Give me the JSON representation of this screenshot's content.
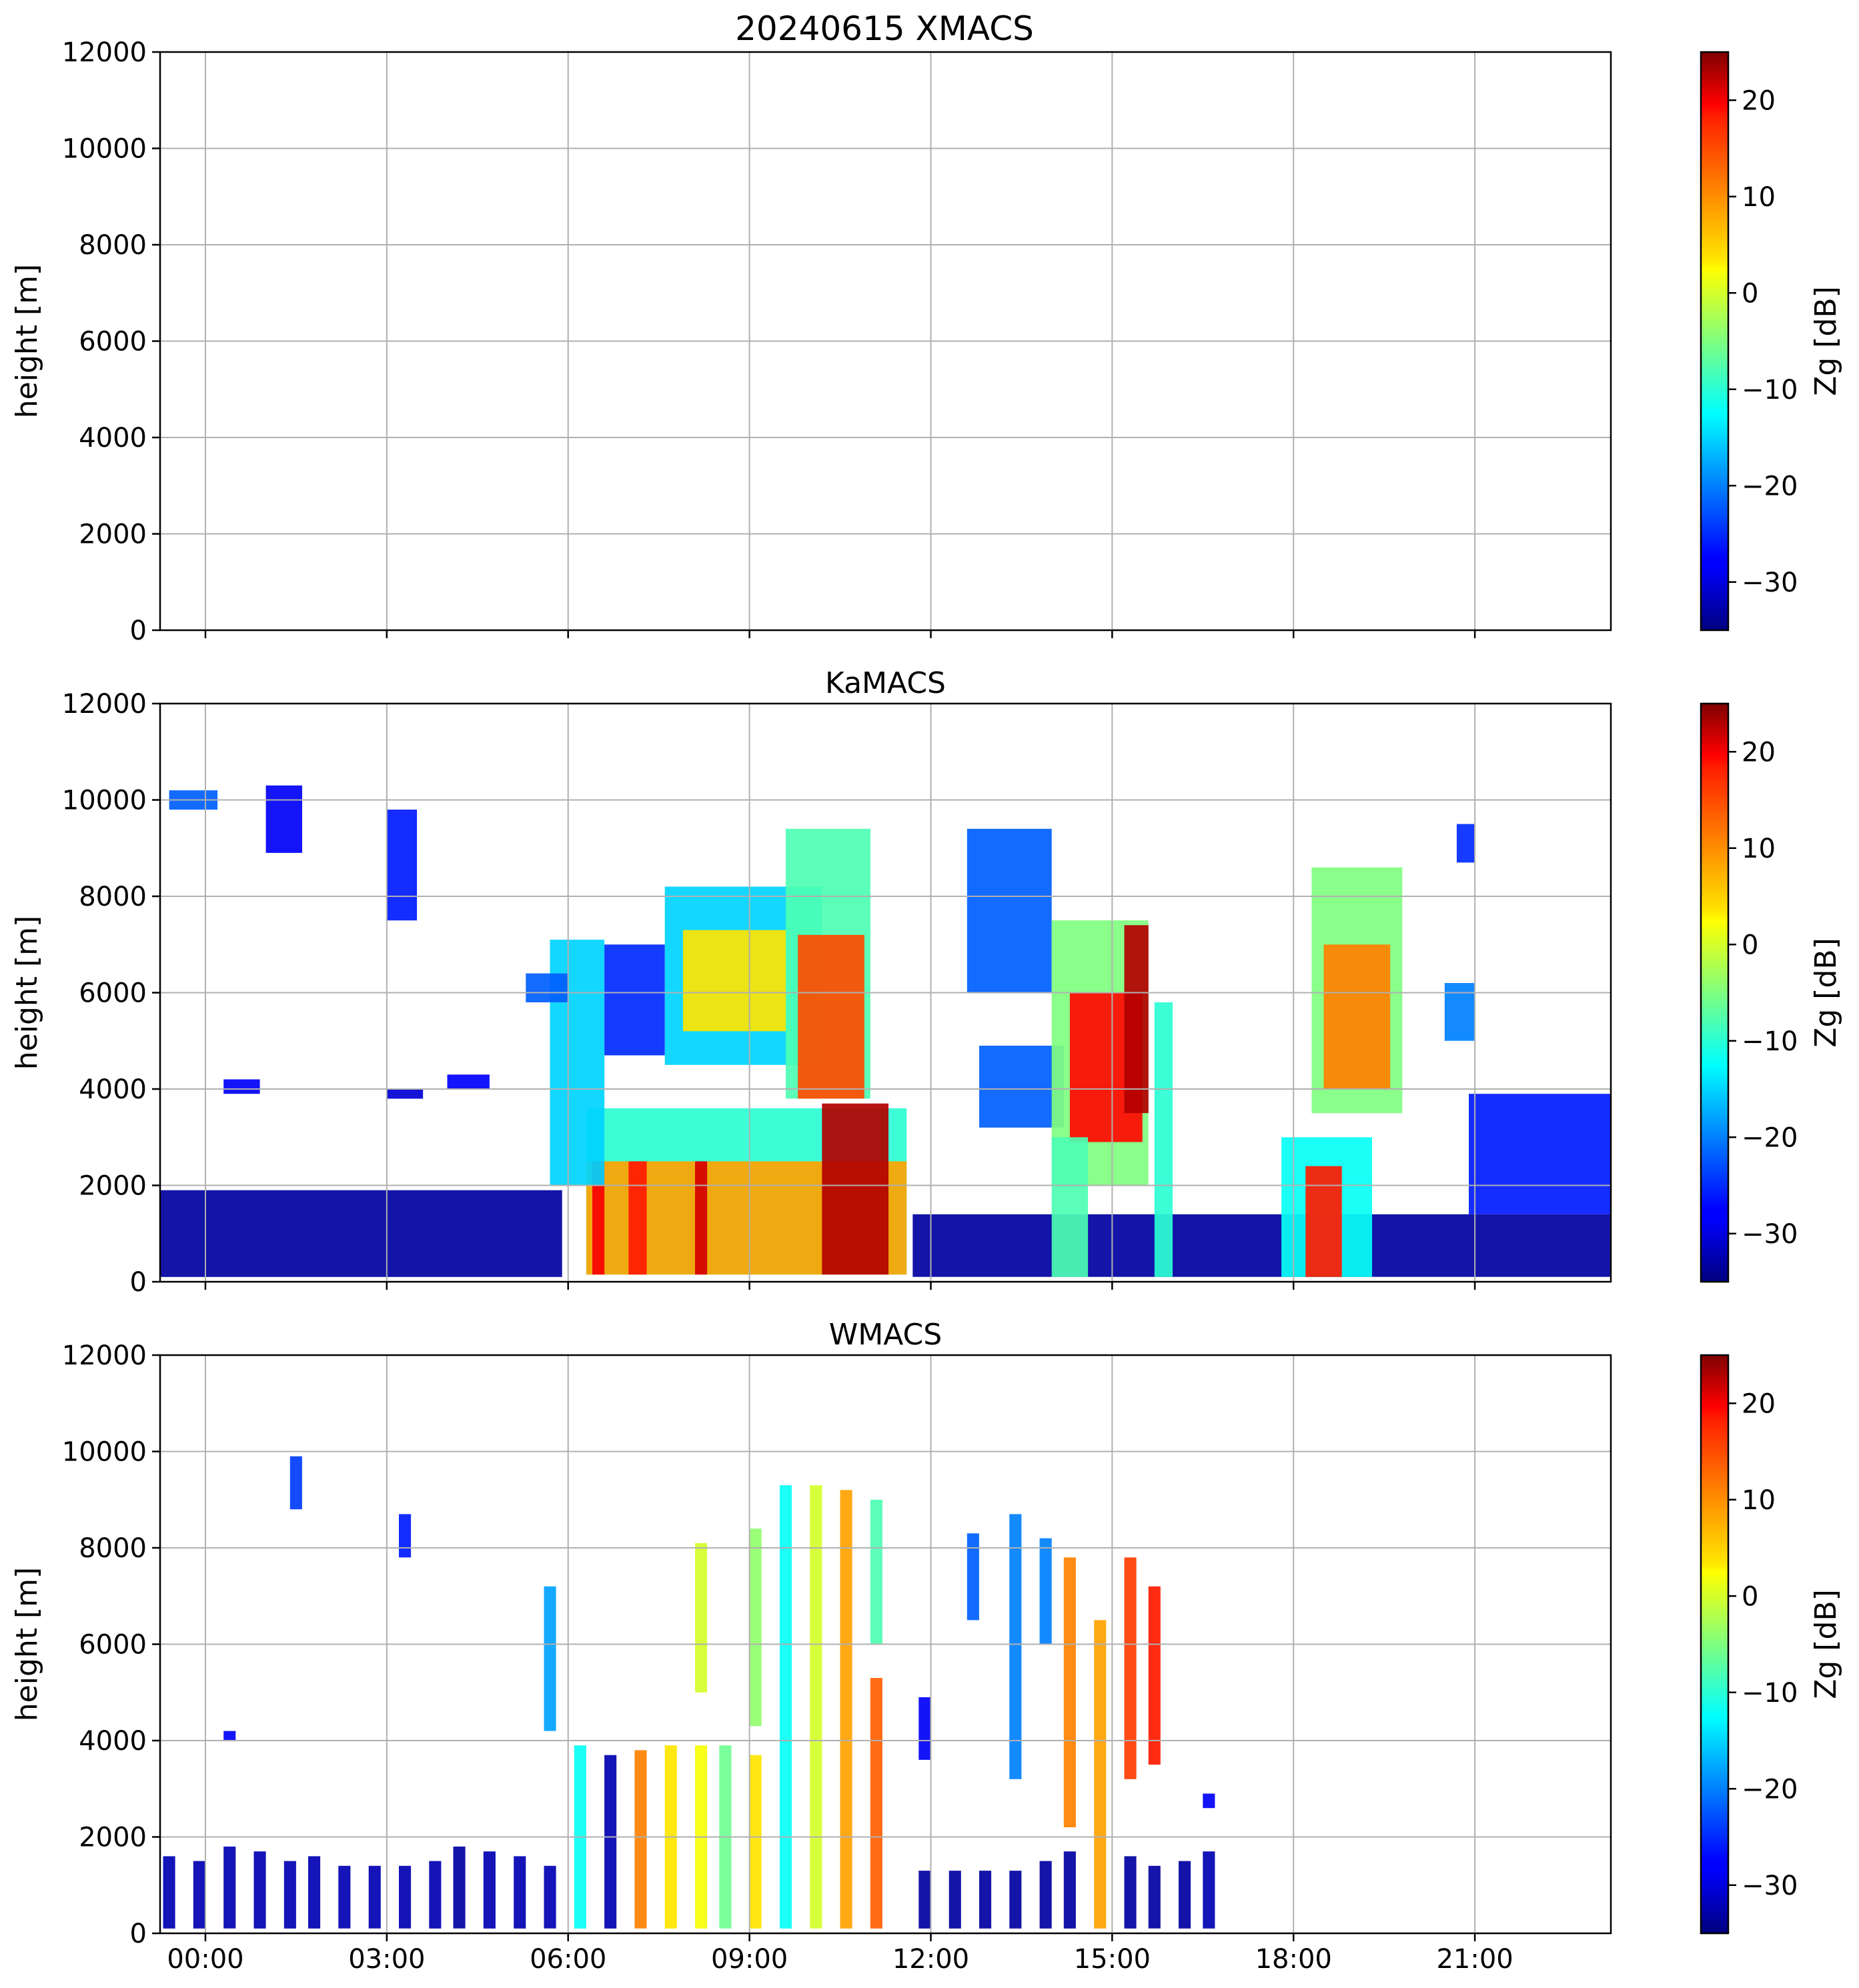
{
  "figure": {
    "suptitle": "20240615 XMACS"
  },
  "chart_data": [
    {
      "type": "heatmap",
      "title": "20240615 XMACS",
      "ylabel": "height [m]",
      "xlabel": "",
      "yticks": [
        0,
        2000,
        4000,
        6000,
        8000,
        10000,
        12000
      ],
      "ylim": [
        0,
        12000
      ],
      "xticks": [
        "00:00",
        "03:00",
        "06:00",
        "09:00",
        "12:00",
        "15:00",
        "18:00",
        "21:00"
      ],
      "x_tick_hours": [
        0,
        3,
        6,
        9,
        12,
        15,
        18,
        21
      ],
      "xlim_hours": [
        -0.75,
        23.25
      ],
      "show_xticklabels": false,
      "grid": true,
      "colorbar": {
        "label": "Zg [dB]",
        "ticks": [
          20,
          10,
          0,
          -10,
          -20,
          -30
        ],
        "range": [
          -35,
          25
        ],
        "colormap": "jet"
      },
      "echoes": []
    },
    {
      "type": "heatmap",
      "title": "KaMACS",
      "ylabel": "height [m]",
      "xlabel": "",
      "yticks": [
        0,
        2000,
        4000,
        6000,
        8000,
        10000,
        12000
      ],
      "ylim": [
        0,
        12000
      ],
      "xticks": [
        "00:00",
        "03:00",
        "06:00",
        "09:00",
        "12:00",
        "15:00",
        "18:00",
        "21:00"
      ],
      "x_tick_hours": [
        0,
        3,
        6,
        9,
        12,
        15,
        18,
        21
      ],
      "xlim_hours": [
        -0.75,
        23.25
      ],
      "show_xticklabels": false,
      "grid": true,
      "colorbar": {
        "label": "Zg [dB]",
        "ticks": [
          20,
          10,
          0,
          -10,
          -20,
          -30
        ],
        "range": [
          -35,
          25
        ],
        "colormap": "jet"
      },
      "echoes": [
        {
          "t0": -0.75,
          "t1": 5.9,
          "h0": 100,
          "h1": 1900,
          "zg": -33
        },
        {
          "t0": 11.7,
          "t1": 23.25,
          "h0": 100,
          "h1": 1400,
          "zg": -33
        },
        {
          "t0": 6.3,
          "t1": 11.6,
          "h0": 150,
          "h1": 3600,
          "zg": -10
        },
        {
          "t0": 6.3,
          "t1": 11.6,
          "h0": 150,
          "h1": 2500,
          "zg": 8
        },
        {
          "t0": 6.4,
          "t1": 6.6,
          "h0": 150,
          "h1": 2500,
          "zg": 18
        },
        {
          "t0": 7.0,
          "t1": 7.3,
          "h0": 150,
          "h1": 2500,
          "zg": 16
        },
        {
          "t0": 8.1,
          "t1": 8.3,
          "h0": 150,
          "h1": 2500,
          "zg": 20
        },
        {
          "t0": 10.2,
          "t1": 11.3,
          "h0": 150,
          "h1": 3700,
          "zg": 22
        },
        {
          "t0": 5.7,
          "t1": 6.6,
          "h0": 2000,
          "h1": 7100,
          "zg": -15
        },
        {
          "t0": 6.6,
          "t1": 7.6,
          "h0": 4700,
          "h1": 7000,
          "zg": -25
        },
        {
          "t0": 7.6,
          "t1": 10.2,
          "h0": 4500,
          "h1": 8200,
          "zg": -15
        },
        {
          "t0": 7.9,
          "t1": 9.6,
          "h0": 5200,
          "h1": 7300,
          "zg": 4
        },
        {
          "t0": 9.6,
          "t1": 11.0,
          "h0": 3800,
          "h1": 9400,
          "zg": -8
        },
        {
          "t0": 9.8,
          "t1": 10.9,
          "h0": 3800,
          "h1": 7200,
          "zg": 13
        },
        {
          "t0": 12.6,
          "t1": 14.0,
          "h0": 6000,
          "h1": 9400,
          "zg": -22
        },
        {
          "t0": 12.8,
          "t1": 14.2,
          "h0": 3200,
          "h1": 4900,
          "zg": -22
        },
        {
          "t0": 14.0,
          "t1": 15.6,
          "h0": 2000,
          "h1": 7500,
          "zg": -5
        },
        {
          "t0": 14.3,
          "t1": 15.5,
          "h0": 2900,
          "h1": 6000,
          "zg": 17
        },
        {
          "t0": 14.0,
          "t1": 14.6,
          "h0": 100,
          "h1": 3000,
          "zg": -8
        },
        {
          "t0": 15.2,
          "t1": 15.6,
          "h0": 3500,
          "h1": 7400,
          "zg": 22
        },
        {
          "t0": 15.7,
          "t1": 16.0,
          "h0": 100,
          "h1": 5800,
          "zg": -10
        },
        {
          "t0": 17.8,
          "t1": 19.3,
          "h0": 100,
          "h1": 3000,
          "zg": -12
        },
        {
          "t0": 18.2,
          "t1": 18.8,
          "h0": 100,
          "h1": 2400,
          "zg": 16
        },
        {
          "t0": 18.3,
          "t1": 19.8,
          "h0": 3500,
          "h1": 8600,
          "zg": -5
        },
        {
          "t0": 18.5,
          "t1": 19.6,
          "h0": 4000,
          "h1": 7000,
          "zg": 10
        },
        {
          "t0": 20.9,
          "t1": 23.25,
          "h0": 1400,
          "h1": 3900,
          "zg": -26
        },
        {
          "t0": 20.5,
          "t1": 21.0,
          "h0": 5000,
          "h1": 6200,
          "zg": -20
        },
        {
          "t0": 20.7,
          "t1": 21.0,
          "h0": 8700,
          "h1": 9500,
          "zg": -25
        },
        {
          "t0": -0.6,
          "t1": 0.2,
          "h0": 9800,
          "h1": 10200,
          "zg": -22
        },
        {
          "t0": 1.0,
          "t1": 1.6,
          "h0": 8900,
          "h1": 10300,
          "zg": -28
        },
        {
          "t0": 3.0,
          "t1": 3.5,
          "h0": 7500,
          "h1": 9800,
          "zg": -26
        },
        {
          "t0": 0.3,
          "t1": 0.9,
          "h0": 3900,
          "h1": 4200,
          "zg": -28
        },
        {
          "t0": 3.0,
          "t1": 3.6,
          "h0": 3800,
          "h1": 4000,
          "zg": -30
        },
        {
          "t0": 4.0,
          "t1": 4.7,
          "h0": 4000,
          "h1": 4300,
          "zg": -28
        },
        {
          "t0": 5.3,
          "t1": 6.0,
          "h0": 5800,
          "h1": 6400,
          "zg": -22
        }
      ]
    },
    {
      "type": "heatmap",
      "title": "WMACS",
      "ylabel": "height [m]",
      "xlabel": "",
      "yticks": [
        0,
        2000,
        4000,
        6000,
        8000,
        10000,
        12000
      ],
      "ylim": [
        0,
        12000
      ],
      "xticks": [
        "00:00",
        "03:00",
        "06:00",
        "09:00",
        "12:00",
        "15:00",
        "18:00",
        "21:00"
      ],
      "x_tick_hours": [
        0,
        3,
        6,
        9,
        12,
        15,
        18,
        21
      ],
      "xlim_hours": [
        -0.75,
        23.25
      ],
      "show_xticklabels": true,
      "grid": true,
      "colorbar": {
        "label": "Zg [dB]",
        "ticks": [
          20,
          10,
          0,
          -10,
          -20,
          -30
        ],
        "range": [
          -35,
          25
        ],
        "colormap": "jet"
      },
      "echoes": [
        {
          "t0": -0.7,
          "t1": -0.5,
          "h0": 100,
          "h1": 1600,
          "zg": -32
        },
        {
          "t0": -0.2,
          "t1": 0.0,
          "h0": 100,
          "h1": 1500,
          "zg": -32
        },
        {
          "t0": 0.3,
          "t1": 0.5,
          "h0": 100,
          "h1": 1800,
          "zg": -32
        },
        {
          "t0": 0.8,
          "t1": 1.0,
          "h0": 100,
          "h1": 1700,
          "zg": -32
        },
        {
          "t0": 1.3,
          "t1": 1.5,
          "h0": 100,
          "h1": 1500,
          "zg": -32
        },
        {
          "t0": 1.7,
          "t1": 1.9,
          "h0": 100,
          "h1": 1600,
          "zg": -32
        },
        {
          "t0": 2.2,
          "t1": 2.4,
          "h0": 100,
          "h1": 1400,
          "zg": -32
        },
        {
          "t0": 2.7,
          "t1": 2.9,
          "h0": 100,
          "h1": 1400,
          "zg": -32
        },
        {
          "t0": 3.2,
          "t1": 3.4,
          "h0": 100,
          "h1": 1400,
          "zg": -32
        },
        {
          "t0": 3.7,
          "t1": 3.9,
          "h0": 100,
          "h1": 1500,
          "zg": -32
        },
        {
          "t0": 4.1,
          "t1": 4.3,
          "h0": 100,
          "h1": 1800,
          "zg": -33
        },
        {
          "t0": 4.6,
          "t1": 4.8,
          "h0": 100,
          "h1": 1700,
          "zg": -32
        },
        {
          "t0": 5.1,
          "t1": 5.3,
          "h0": 100,
          "h1": 1600,
          "zg": -32
        },
        {
          "t0": 5.6,
          "t1": 5.8,
          "h0": 100,
          "h1": 1400,
          "zg": -32
        },
        {
          "t0": 5.6,
          "t1": 5.8,
          "h0": 4200,
          "h1": 7200,
          "zg": -18
        },
        {
          "t0": 6.1,
          "t1": 6.3,
          "h0": 100,
          "h1": 3900,
          "zg": -12
        },
        {
          "t0": 6.6,
          "t1": 6.8,
          "h0": 100,
          "h1": 3700,
          "zg": -32
        },
        {
          "t0": 7.1,
          "t1": 7.3,
          "h0": 100,
          "h1": 3800,
          "zg": 10
        },
        {
          "t0": 7.6,
          "t1": 7.8,
          "h0": 100,
          "h1": 3900,
          "zg": 4
        },
        {
          "t0": 8.1,
          "t1": 8.3,
          "h0": 100,
          "h1": 3900,
          "zg": 2
        },
        {
          "t0": 8.1,
          "t1": 8.3,
          "h0": 5000,
          "h1": 8100,
          "zg": 0
        },
        {
          "t0": 8.5,
          "t1": 8.7,
          "h0": 100,
          "h1": 3900,
          "zg": -6
        },
        {
          "t0": 9.0,
          "t1": 9.2,
          "h0": 100,
          "h1": 3700,
          "zg": 4
        },
        {
          "t0": 9.0,
          "t1": 9.2,
          "h0": 4300,
          "h1": 8400,
          "zg": -4
        },
        {
          "t0": 9.5,
          "t1": 9.7,
          "h0": 100,
          "h1": 9300,
          "zg": -12
        },
        {
          "t0": 10.0,
          "t1": 10.2,
          "h0": 100,
          "h1": 9300,
          "zg": 0
        },
        {
          "t0": 10.5,
          "t1": 10.7,
          "h0": 100,
          "h1": 9200,
          "zg": 8
        },
        {
          "t0": 11.0,
          "t1": 11.2,
          "h0": 100,
          "h1": 5300,
          "zg": 12
        },
        {
          "t0": 11.0,
          "t1": 11.2,
          "h0": 6000,
          "h1": 9000,
          "zg": -8
        },
        {
          "t0": 11.8,
          "t1": 12.0,
          "h0": 3600,
          "h1": 4900,
          "zg": -28
        },
        {
          "t0": 11.8,
          "t1": 12.0,
          "h0": 100,
          "h1": 1300,
          "zg": -33
        },
        {
          "t0": 12.3,
          "t1": 12.5,
          "h0": 100,
          "h1": 1300,
          "zg": -33
        },
        {
          "t0": 12.8,
          "t1": 13.0,
          "h0": 100,
          "h1": 1300,
          "zg": -33
        },
        {
          "t0": 12.6,
          "t1": 12.8,
          "h0": 6500,
          "h1": 8300,
          "zg": -22
        },
        {
          "t0": 13.3,
          "t1": 13.5,
          "h0": 100,
          "h1": 1300,
          "zg": -33
        },
        {
          "t0": 13.3,
          "t1": 13.5,
          "h0": 3200,
          "h1": 8700,
          "zg": -20
        },
        {
          "t0": 13.8,
          "t1": 14.0,
          "h0": 100,
          "h1": 1500,
          "zg": -33
        },
        {
          "t0": 13.8,
          "t1": 14.0,
          "h0": 6000,
          "h1": 8200,
          "zg": -20
        },
        {
          "t0": 14.2,
          "t1": 14.4,
          "h0": 100,
          "h1": 1700,
          "zg": -33
        },
        {
          "t0": 14.2,
          "t1": 14.4,
          "h0": 2200,
          "h1": 7800,
          "zg": 10
        },
        {
          "t0": 14.7,
          "t1": 14.9,
          "h0": 100,
          "h1": 6500,
          "zg": 8
        },
        {
          "t0": 15.2,
          "t1": 15.4,
          "h0": 100,
          "h1": 1600,
          "zg": -33
        },
        {
          "t0": 15.2,
          "t1": 15.4,
          "h0": 3200,
          "h1": 7800,
          "zg": 14
        },
        {
          "t0": 15.6,
          "t1": 15.8,
          "h0": 100,
          "h1": 1400,
          "zg": -33
        },
        {
          "t0": 15.6,
          "t1": 15.8,
          "h0": 3500,
          "h1": 7200,
          "zg": 16
        },
        {
          "t0": 16.1,
          "t1": 16.3,
          "h0": 100,
          "h1": 1500,
          "zg": -33
        },
        {
          "t0": 16.5,
          "t1": 16.7,
          "h0": 100,
          "h1": 1700,
          "zg": -32
        },
        {
          "t0": 16.5,
          "t1": 16.7,
          "h0": 2600,
          "h1": 2900,
          "zg": -28
        },
        {
          "t0": 0.3,
          "t1": 0.5,
          "h0": 4000,
          "h1": 4200,
          "zg": -28
        },
        {
          "t0": 1.4,
          "t1": 1.6,
          "h0": 8800,
          "h1": 9900,
          "zg": -24
        },
        {
          "t0": 3.2,
          "t1": 3.4,
          "h0": 7800,
          "h1": 8700,
          "zg": -26
        }
      ]
    }
  ]
}
